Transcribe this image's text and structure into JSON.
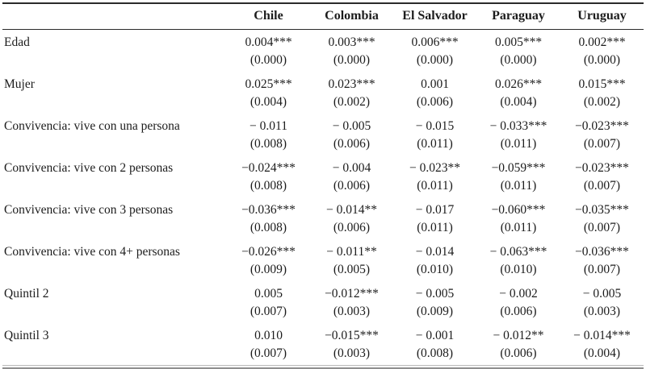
{
  "style": {
    "text_color": "#1c1c1c",
    "rule_dark": "#2a2a2a",
    "rule_light": "#b9b9b9",
    "rule_mid": "#8f8f8f",
    "background": "#ffffff"
  },
  "table": {
    "header": [
      "Chile",
      "Colombia",
      "El Salvador",
      "Paraguay",
      "Uruguay"
    ],
    "rows": [
      {
        "label": "Edad",
        "coef": [
          "0.004***",
          "0.003***",
          "0.006***",
          "0.005***",
          "0.002***"
        ],
        "se": [
          "(0.000)",
          "(0.000)",
          "(0.000)",
          "(0.000)",
          "(0.000)"
        ]
      },
      {
        "label": "Mujer",
        "coef": [
          "0.025***",
          "0.023***",
          "0.001",
          "0.026***",
          "0.015***"
        ],
        "se": [
          "(0.004)",
          "(0.002)",
          "(0.006)",
          "(0.004)",
          "(0.002)"
        ]
      },
      {
        "label": "Convivencia: vive con una persona",
        "coef": [
          "− 0.011",
          "− 0.005",
          "− 0.015",
          "− 0.033***",
          "−0.023***"
        ],
        "se": [
          "(0.008)",
          "(0.006)",
          "(0.011)",
          "(0.011)",
          "(0.007)"
        ]
      },
      {
        "label": "Convivencia: vive con 2 personas",
        "coef": [
          "−0.024***",
          "− 0.004",
          "− 0.023**",
          "−0.059***",
          "−0.023***"
        ],
        "se": [
          "(0.008)",
          "(0.006)",
          "(0.011)",
          "(0.011)",
          "(0.007)"
        ]
      },
      {
        "label": "Convivencia: vive con 3 personas",
        "coef": [
          "−0.036***",
          "− 0.014**",
          "− 0.017",
          "−0.060***",
          "−0.035***"
        ],
        "se": [
          "(0.008)",
          "(0.006)",
          "(0.011)",
          "(0.011)",
          "(0.007)"
        ]
      },
      {
        "label": "Convivencia: vive con 4+ personas",
        "coef": [
          "−0.026***",
          "− 0.011**",
          "− 0.014",
          "− 0.063***",
          "−0.036***"
        ],
        "se": [
          "(0.009)",
          "(0.005)",
          "(0.010)",
          "(0.010)",
          "(0.007)"
        ]
      },
      {
        "label": "Quintil 2",
        "coef": [
          "0.005",
          "−0.012***",
          "− 0.005",
          "− 0.002",
          "− 0.005"
        ],
        "se": [
          "(0.007)",
          "(0.003)",
          "(0.009)",
          "(0.006)",
          "(0.003)"
        ]
      },
      {
        "label": "Quintil 3",
        "coef": [
          "0.010",
          "−0.015***",
          "− 0.001",
          "− 0.012**",
          "− 0.014***"
        ],
        "se": [
          "(0.007)",
          "(0.003)",
          "(0.008)",
          "(0.006)",
          "(0.004)"
        ]
      }
    ]
  }
}
